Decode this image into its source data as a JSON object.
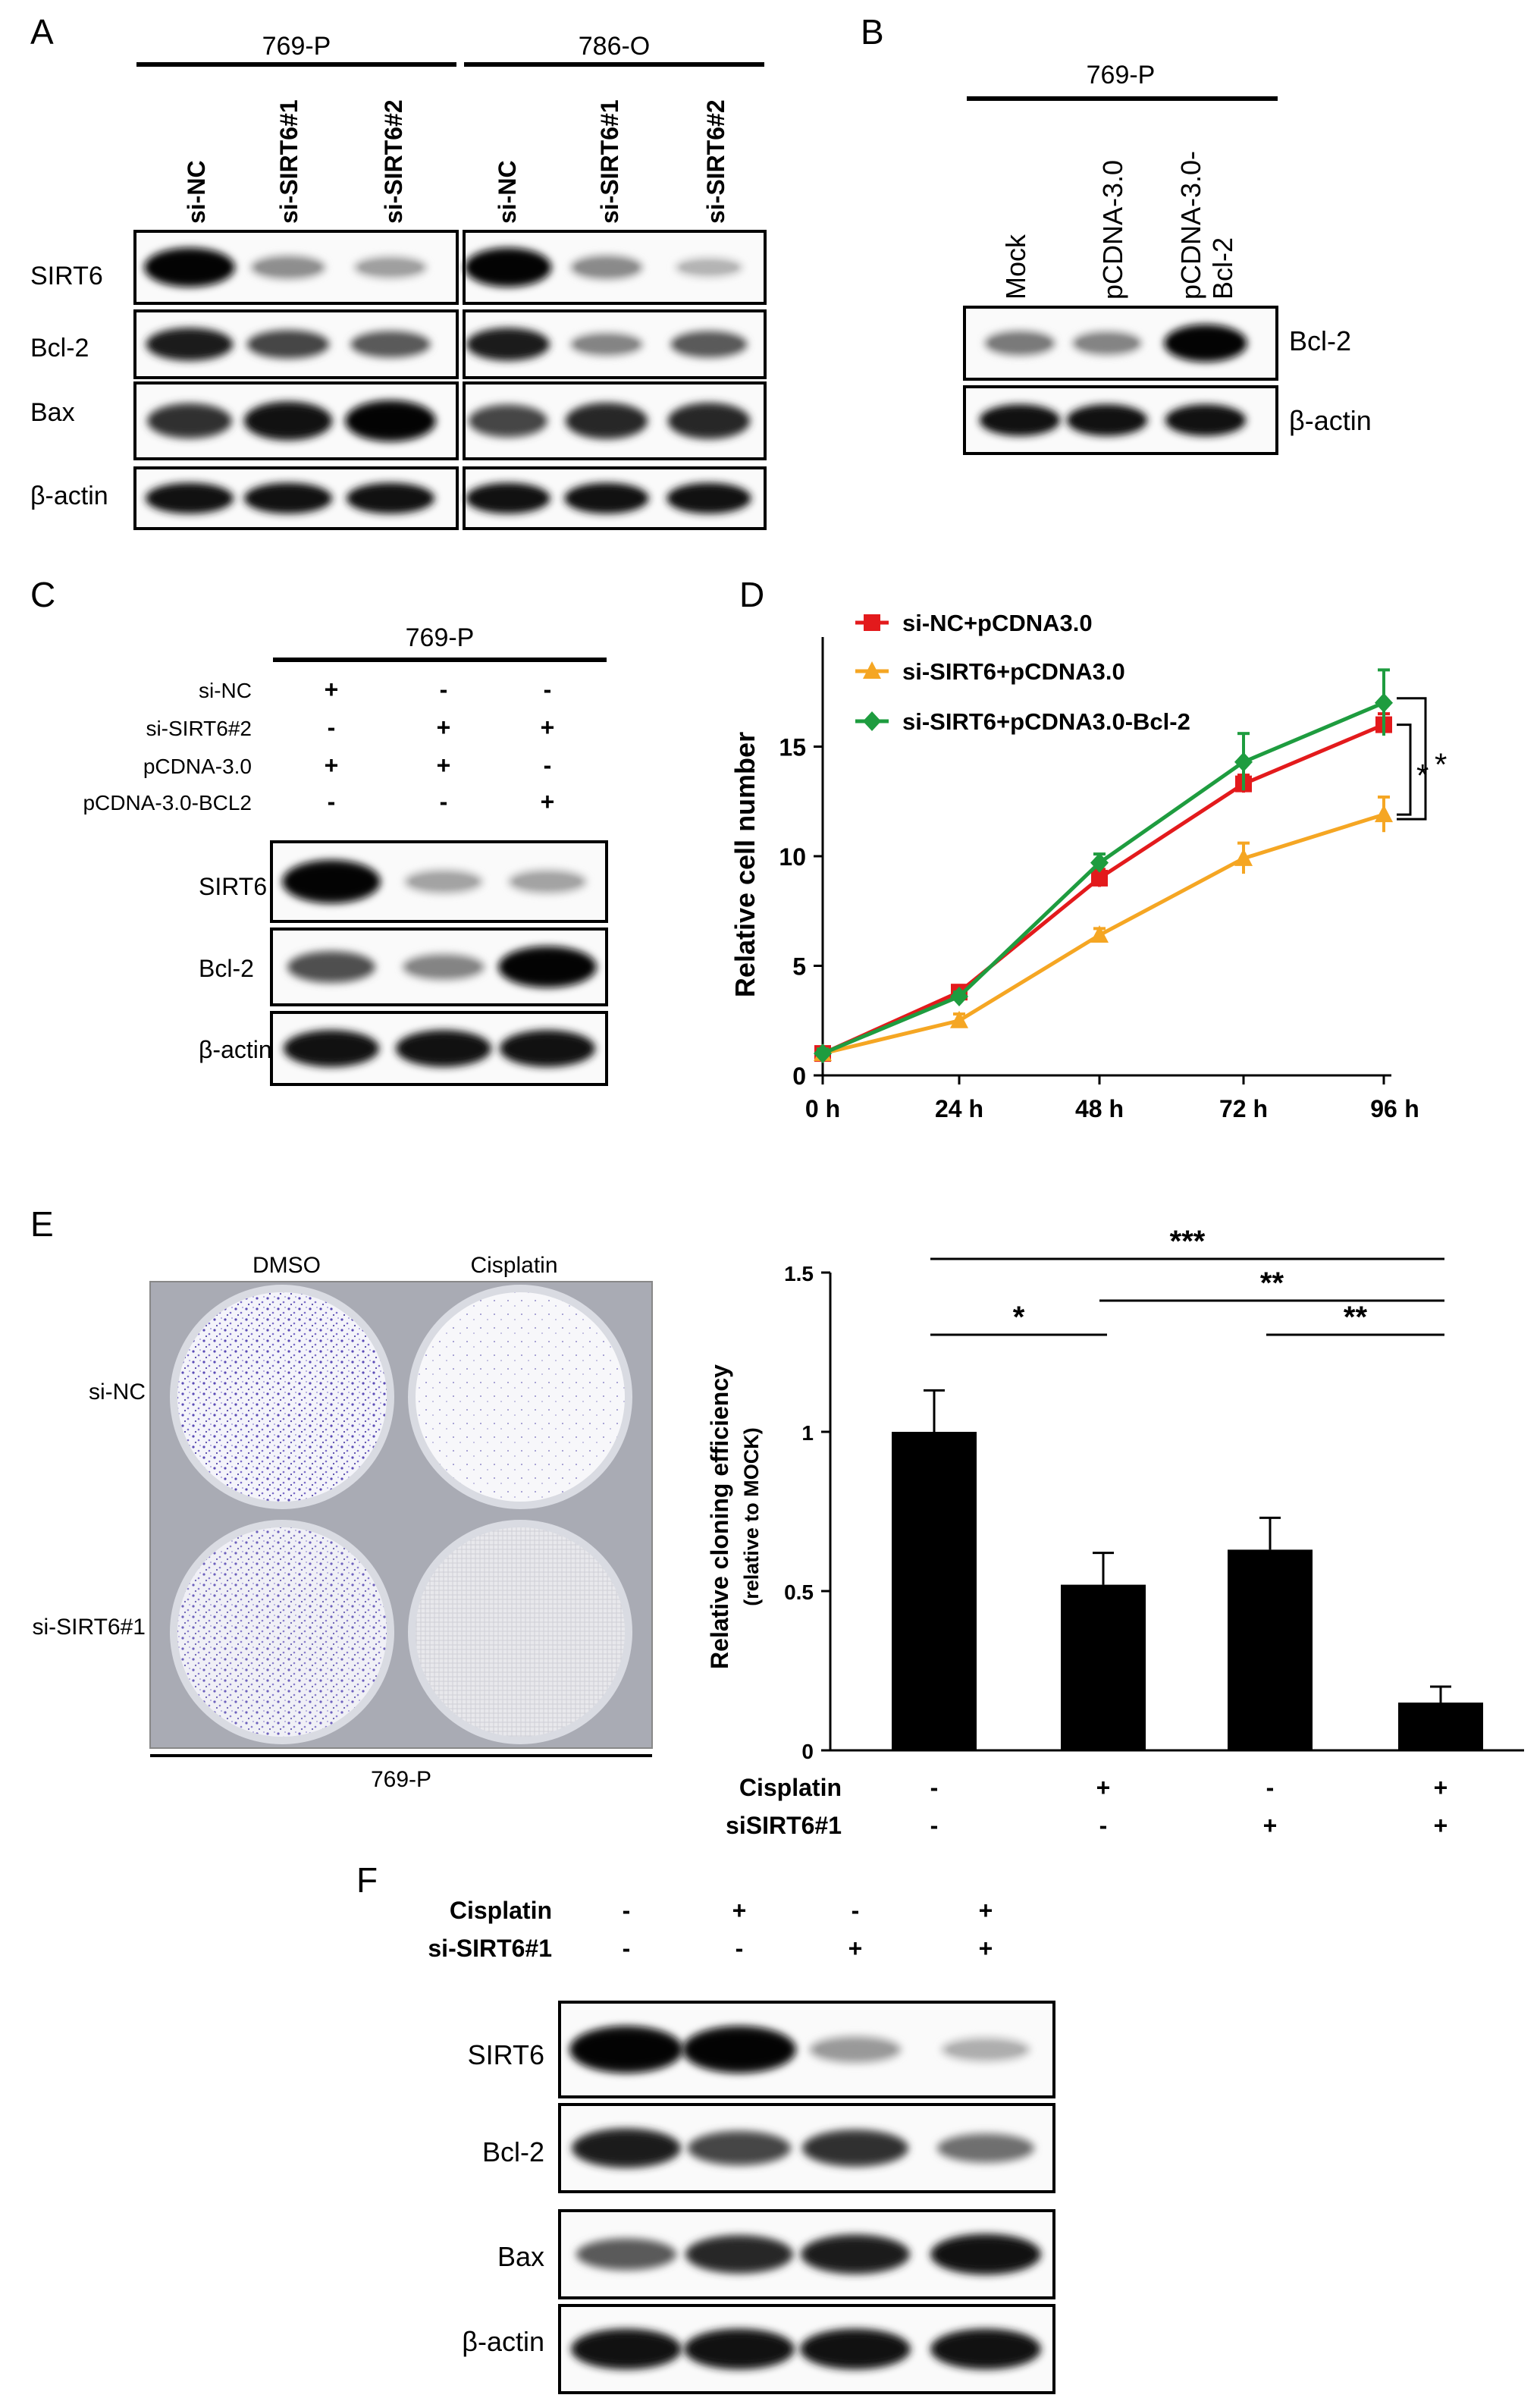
{
  "panels": {
    "A": {
      "letter": "A",
      "groups": [
        "769-P",
        "786-O"
      ],
      "lanes": [
        "si-NC",
        "si-SIRT6#1",
        "si-SIRT6#2"
      ],
      "rows": [
        {
          "label": "SIRT6",
          "bands_769P": [
            1.0,
            0.3,
            0.22
          ],
          "bands_786O": [
            1.0,
            0.32,
            0.12
          ]
        },
        {
          "label": "Bcl-2",
          "bands_769P": [
            0.85,
            0.65,
            0.55
          ],
          "bands_786O": [
            0.85,
            0.35,
            0.55
          ]
        },
        {
          "label": "Bax",
          "bands_769P": [
            0.75,
            0.9,
            1.0
          ],
          "bands_786O": [
            0.65,
            0.8,
            0.8
          ]
        },
        {
          "label": "β-actin",
          "bands_769P": [
            0.9,
            0.9,
            0.9
          ],
          "bands_786O": [
            0.9,
            0.9,
            0.9
          ]
        }
      ]
    },
    "B": {
      "letter": "B",
      "group": "769-P",
      "lanes": [
        "Mock",
        "pCDNA-3.0",
        "pCDNA-3.0-Bcl-2"
      ],
      "lane_lines": [
        [
          "Mock"
        ],
        [
          "pCDNA-3.0"
        ],
        [
          "pCDNA-3.0-",
          "Bcl-2"
        ]
      ],
      "rows": [
        {
          "label": "Bcl-2",
          "bands": [
            0.4,
            0.35,
            1.0
          ]
        },
        {
          "label": "β-actin",
          "bands": [
            0.9,
            0.9,
            0.9
          ]
        }
      ]
    },
    "C": {
      "letter": "C",
      "group": "769-P",
      "conditions": [
        {
          "label": "si-NC",
          "signs": [
            "+",
            "-",
            "-"
          ]
        },
        {
          "label": "si-SIRT6#2",
          "signs": [
            "-",
            "+",
            "+"
          ]
        },
        {
          "label": "pCDNA-3.0",
          "signs": [
            "+",
            "+",
            "-"
          ]
        },
        {
          "label": "pCDNA-3.0-BCL2",
          "signs": [
            "-",
            "-",
            "+"
          ]
        }
      ],
      "rows": [
        {
          "label": "SIRT6",
          "bands": [
            1.0,
            0.2,
            0.2
          ]
        },
        {
          "label": "Bcl-2",
          "bands": [
            0.6,
            0.35,
            1.0
          ]
        },
        {
          "label": "β-actin",
          "bands": [
            0.9,
            0.9,
            0.9
          ]
        }
      ]
    },
    "D": {
      "letter": "D",
      "chart_data": {
        "type": "line",
        "ylabel": "Relative cell number",
        "x": [
          "0 h",
          "24 h",
          "48 h",
          "72 h",
          "96"
        ],
        "x_unit_label": "h",
        "ylim": [
          0,
          20
        ],
        "yticks": [
          "0",
          "5",
          "10",
          "15"
        ],
        "series": [
          {
            "name": "si-NC+pCDNA3.0",
            "color": "#e31a1c",
            "marker": "square",
            "values": [
              1.0,
              3.8,
              9.0,
              13.3,
              16.0
            ],
            "errors": [
              0.2,
              0.2,
              0.4,
              0.4,
              0.5
            ]
          },
          {
            "name": "si-SIRT6+pCDNA3.0",
            "color": "#f5a623",
            "marker": "triangle",
            "values": [
              1.0,
              2.5,
              6.4,
              9.9,
              11.9
            ],
            "errors": [
              0.2,
              0.3,
              0.3,
              0.7,
              0.8
            ]
          },
          {
            "name": "si-SIRT6+pCDNA3.0-Bcl-2",
            "color": "#1e9c3f",
            "marker": "diamond",
            "values": [
              1.0,
              3.6,
              9.7,
              14.3,
              17.0
            ],
            "errors": [
              0.2,
              0.2,
              0.4,
              1.3,
              1.5
            ]
          }
        ],
        "significance": [
          "*",
          "*"
        ]
      }
    },
    "E": {
      "letter": "E",
      "plate_cols": [
        "DMSO",
        "Cisplatin"
      ],
      "plate_rows": [
        "si-NC",
        "si-SIRT6#1"
      ],
      "plate_caption": "769-P",
      "chart_data": {
        "type": "bar",
        "ylabel": "Relative cloning efficiency",
        "ylabel2": "(relative to MOCK)",
        "ylim": [
          0,
          1.5
        ],
        "yticks": [
          "0",
          "0.5",
          "1",
          "1.5"
        ],
        "values": [
          1.0,
          0.52,
          0.63,
          0.15
        ],
        "errors": [
          0.13,
          0.1,
          0.1,
          0.05
        ],
        "condition_rows": [
          {
            "label": "Cisplatin",
            "signs": [
              "-",
              "+",
              "-",
              "+"
            ]
          },
          {
            "label": "siSIRT6#1",
            "signs": [
              "-",
              "-",
              "+",
              "+"
            ]
          }
        ],
        "comparisons": [
          {
            "from": 0,
            "to": 3,
            "label": "***"
          },
          {
            "from": 1,
            "to": 3,
            "label": "**"
          },
          {
            "from": 0,
            "to": 1,
            "label": "*"
          },
          {
            "from": 2,
            "to": 3,
            "label": "**"
          }
        ]
      }
    },
    "F": {
      "letter": "F",
      "conditions": [
        {
          "label": "Cisplatin",
          "signs": [
            "-",
            "+",
            "-",
            "+"
          ]
        },
        {
          "label": "si-SIRT6#1",
          "signs": [
            "-",
            "-",
            "+",
            "+"
          ]
        }
      ],
      "rows": [
        {
          "label": "SIRT6",
          "bands": [
            1.0,
            1.0,
            0.25,
            0.15
          ]
        },
        {
          "label": "Bcl-2",
          "bands": [
            0.85,
            0.65,
            0.75,
            0.45
          ]
        },
        {
          "label": "Bax",
          "bands": [
            0.55,
            0.8,
            0.85,
            0.9
          ]
        },
        {
          "label": "β-actin",
          "bands": [
            0.9,
            0.9,
            0.9,
            0.9
          ]
        }
      ]
    }
  }
}
